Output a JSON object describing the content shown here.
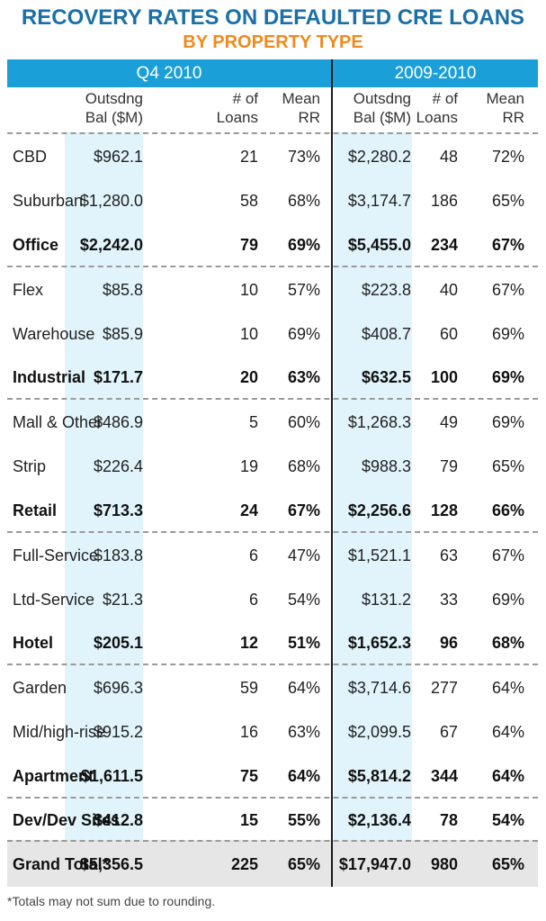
{
  "title": "RECOVERY RATES ON DEFAULTED CRE LOANS",
  "subtitle": "BY PROPERTY TYPE",
  "periods": [
    "Q4 2010",
    "2009-2010"
  ],
  "columns": [
    "Outsdng\nBal ($M)",
    "# of\nLoans",
    "Mean\nRR",
    "Outsdng\nBal ($M)",
    "# of\nLoans",
    "Mean\nRR"
  ],
  "rows": [
    {
      "label": "CBD",
      "q4_bal": "$962.1",
      "q4_loans": "21",
      "q4_rr": "73%",
      "yr_bal": "$2,280.2",
      "yr_loans": "48",
      "yr_rr": "72%"
    },
    {
      "label": "Suburban",
      "q4_bal": "$1,280.0",
      "q4_loans": "58",
      "q4_rr": "68%",
      "yr_bal": "$3,174.7",
      "yr_loans": "186",
      "yr_rr": "65%"
    },
    {
      "label": "Office",
      "q4_bal": "$2,242.0",
      "q4_loans": "79",
      "q4_rr": "69%",
      "yr_bal": "$5,455.0",
      "yr_loans": "234",
      "yr_rr": "67%"
    },
    {
      "label": "Flex",
      "q4_bal": "$85.8",
      "q4_loans": "10",
      "q4_rr": "57%",
      "yr_bal": "$223.8",
      "yr_loans": "40",
      "yr_rr": "67%"
    },
    {
      "label": "Warehouse",
      "q4_bal": "$85.9",
      "q4_loans": "10",
      "q4_rr": "69%",
      "yr_bal": "$408.7",
      "yr_loans": "60",
      "yr_rr": "69%"
    },
    {
      "label": "Industrial",
      "q4_bal": "$171.7",
      "q4_loans": "20",
      "q4_rr": "63%",
      "yr_bal": "$632.5",
      "yr_loans": "100",
      "yr_rr": "69%"
    },
    {
      "label": "Mall & Other",
      "q4_bal": "$486.9",
      "q4_loans": "5",
      "q4_rr": "60%",
      "yr_bal": "$1,268.3",
      "yr_loans": "49",
      "yr_rr": "69%"
    },
    {
      "label": "Strip",
      "q4_bal": "$226.4",
      "q4_loans": "19",
      "q4_rr": "68%",
      "yr_bal": "$988.3",
      "yr_loans": "79",
      "yr_rr": "65%"
    },
    {
      "label": "Retail",
      "q4_bal": "$713.3",
      "q4_loans": "24",
      "q4_rr": "67%",
      "yr_bal": "$2,256.6",
      "yr_loans": "128",
      "yr_rr": "66%"
    },
    {
      "label": "Full-Service",
      "q4_bal": "$183.8",
      "q4_loans": "6",
      "q4_rr": "47%",
      "yr_bal": "$1,521.1",
      "yr_loans": "63",
      "yr_rr": "67%"
    },
    {
      "label": "Ltd-Service",
      "q4_bal": "$21.3",
      "q4_loans": "6",
      "q4_rr": "54%",
      "yr_bal": "$131.2",
      "yr_loans": "33",
      "yr_rr": "69%"
    },
    {
      "label": "Hotel",
      "q4_bal": "$205.1",
      "q4_loans": "12",
      "q4_rr": "51%",
      "yr_bal": "$1,652.3",
      "yr_loans": "96",
      "yr_rr": "68%"
    },
    {
      "label": "Garden",
      "q4_bal": "$696.3",
      "q4_loans": "59",
      "q4_rr": "64%",
      "yr_bal": "$3,714.6",
      "yr_loans": "277",
      "yr_rr": "64%"
    },
    {
      "label": "Mid/high-rise",
      "q4_bal": "$915.2",
      "q4_loans": "16",
      "q4_rr": "63%",
      "yr_bal": "$2,099.5",
      "yr_loans": "67",
      "yr_rr": "64%"
    },
    {
      "label": "Apartment",
      "q4_bal": "$1,611.5",
      "q4_loans": "75",
      "q4_rr": "64%",
      "yr_bal": "$5,814.2",
      "yr_loans": "344",
      "yr_rr": "64%"
    },
    {
      "label": "Dev/Dev Sites",
      "q4_bal": "$412.8",
      "q4_loans": "15",
      "q4_rr": "55%",
      "yr_bal": "$2,136.4",
      "yr_loans": "78",
      "yr_rr": "54%"
    }
  ],
  "total": {
    "label": "Grand Total*",
    "q4_bal": "$5,356.5",
    "q4_loans": "225",
    "q4_rr": "65%",
    "yr_bal": "$17,947.0",
    "yr_loans": "980",
    "yr_rr": "65%"
  },
  "footnote": "*Totals may not sum due to rounding.",
  "colors": {
    "title": "#1b6fa8",
    "subtitle": "#f08a1c",
    "header_band": "#1b9fd9",
    "shade": "#e1f3fb",
    "total_bg": "#e6e6e6"
  }
}
